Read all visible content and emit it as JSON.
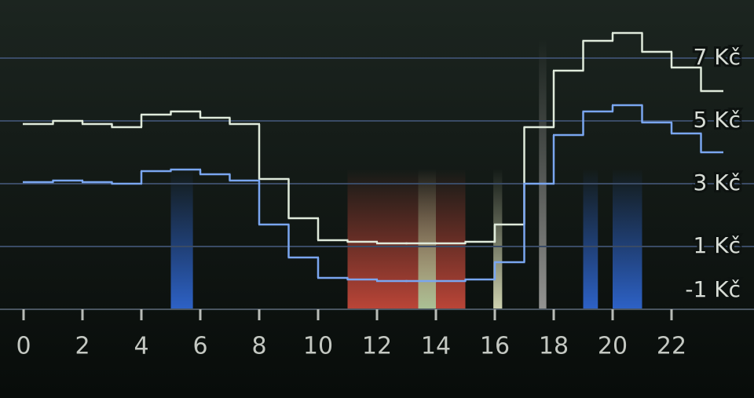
{
  "chart_data": {
    "type": "step",
    "x": [
      0,
      1,
      2,
      3,
      4,
      5,
      6,
      7,
      8,
      9,
      10,
      11,
      12,
      13,
      14,
      15,
      16,
      17,
      18,
      19,
      20,
      21,
      22,
      23
    ],
    "xlim": [
      0,
      24
    ],
    "xticks": [
      0,
      2,
      4,
      6,
      8,
      10,
      12,
      14,
      16,
      18,
      20,
      22
    ],
    "ylim": [
      -1,
      8
    ],
    "yticks": [
      {
        "value": -1,
        "label": "-1 Kč"
      },
      {
        "value": 1,
        "label": "1 Kč"
      },
      {
        "value": 3,
        "label": "3 Kč"
      },
      {
        "value": 5,
        "label": "5 Kč"
      },
      {
        "value": 7,
        "label": "7 Kč"
      }
    ],
    "grid": true,
    "series": [
      {
        "color": "#dfeadb",
        "values": [
          4.9,
          5.0,
          4.9,
          4.8,
          5.2,
          5.3,
          5.1,
          4.9,
          3.15,
          1.9,
          1.2,
          1.15,
          1.1,
          1.1,
          1.1,
          1.15,
          1.7,
          4.8,
          6.6,
          7.55,
          7.8,
          7.2,
          6.7,
          5.95
        ]
      },
      {
        "color": "#7aa6f0",
        "values": [
          3.05,
          3.1,
          3.05,
          3.0,
          3.4,
          3.45,
          3.3,
          3.1,
          1.7,
          0.65,
          0.0,
          -0.05,
          -0.1,
          -0.1,
          -0.1,
          -0.05,
          0.5,
          3.0,
          4.55,
          5.3,
          5.5,
          4.95,
          4.6,
          4.0
        ]
      }
    ],
    "bands": [
      {
        "start": 5,
        "end": 5.75,
        "color": "#2f66d0"
      },
      {
        "start": 11,
        "end": 15,
        "color": "#c4483a"
      },
      {
        "start": 13.4,
        "end": 14,
        "color": "#a9c79a"
      },
      {
        "start": 15.95,
        "end": 16.25,
        "color": "#d8dcb8"
      },
      {
        "start": 17.5,
        "end": 17.75,
        "color": "#9a9a98"
      },
      {
        "start": 19,
        "end": 19.5,
        "color": "#2f66d0"
      },
      {
        "start": 20,
        "end": 21,
        "color": "#2f66d0"
      }
    ]
  }
}
